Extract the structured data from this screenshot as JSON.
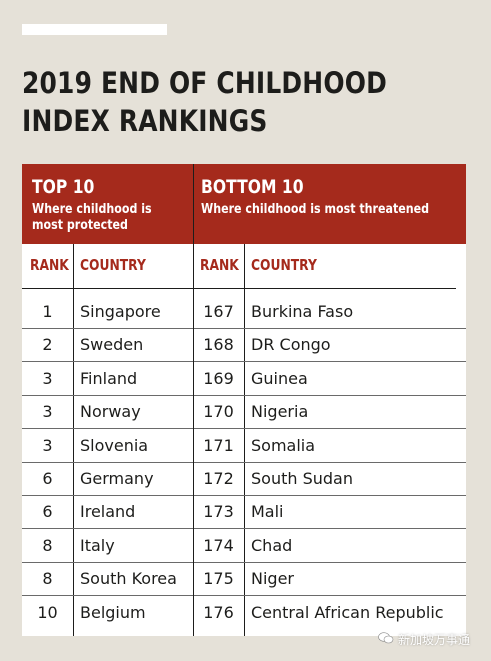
{
  "title": {
    "line1": "2019 END OF CHILDHOOD",
    "line2": "INDEX RANKINGS"
  },
  "top": {
    "heading": "TOP 10",
    "subtitle_line1": "Where childhood is",
    "subtitle_line2": "most protected",
    "col_rank": "RANK",
    "col_country": "COUNTRY",
    "rows": [
      {
        "rank": "1",
        "country": "Singapore"
      },
      {
        "rank": "2",
        "country": "Sweden"
      },
      {
        "rank": "3",
        "country": "Finland"
      },
      {
        "rank": "3",
        "country": "Norway"
      },
      {
        "rank": "3",
        "country": "Slovenia"
      },
      {
        "rank": "6",
        "country": "Germany"
      },
      {
        "rank": "6",
        "country": "Ireland"
      },
      {
        "rank": "8",
        "country": "Italy"
      },
      {
        "rank": "8",
        "country": "South Korea"
      },
      {
        "rank": "10",
        "country": "Belgium"
      }
    ]
  },
  "bottom": {
    "heading": "BOTTOM 10",
    "subtitle": "Where childhood is most threatened",
    "col_rank": "RANK",
    "col_country": "COUNTRY",
    "rows": [
      {
        "rank": "167",
        "country": "Burkina Faso"
      },
      {
        "rank": "168",
        "country": "DR Congo"
      },
      {
        "rank": "169",
        "country": "Guinea"
      },
      {
        "rank": "170",
        "country": "Nigeria"
      },
      {
        "rank": "171",
        "country": "Somalia"
      },
      {
        "rank": "172",
        "country": "South Sudan"
      },
      {
        "rank": "173",
        "country": "Mali"
      },
      {
        "rank": "174",
        "country": "Chad"
      },
      {
        "rank": "175",
        "country": "Niger"
      },
      {
        "rank": "176",
        "country": "Central African Republic"
      }
    ]
  },
  "watermark": {
    "icon": "wechat-icon",
    "text": "新加坡万事通"
  },
  "colors": {
    "background": "#e5e1d8",
    "header_red": "#a52a1c",
    "text": "#1d1d1b"
  }
}
